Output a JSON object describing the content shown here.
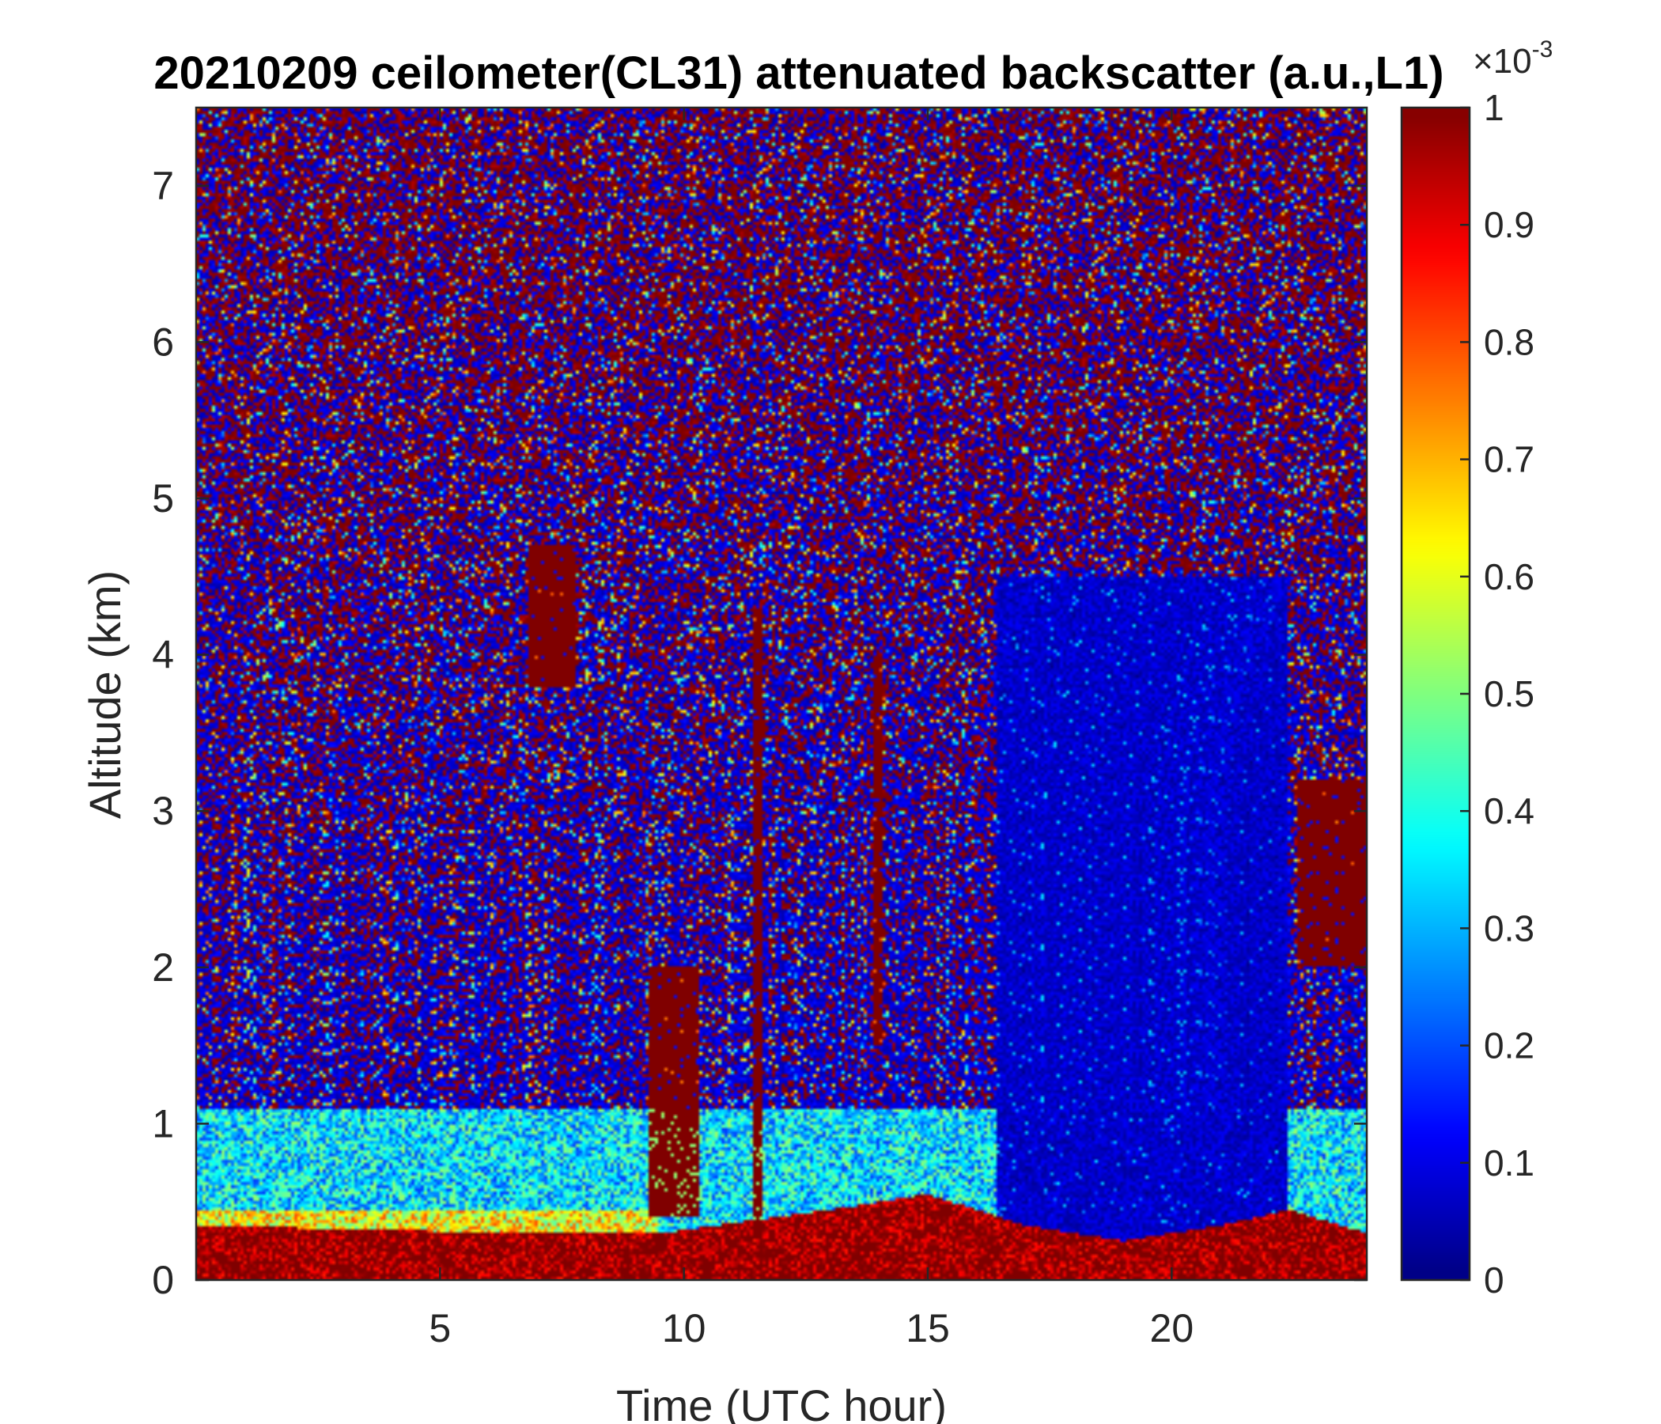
{
  "chart_data": {
    "type": "heatmap",
    "title": "20210209 ceilometer(CL31) attenuated backscatter (a.u.,L1)",
    "xlabel": "Time (UTC hour)",
    "ylabel": "Altitude (km)",
    "xlim": [
      0,
      24
    ],
    "ylim": [
      0,
      7.5
    ],
    "xticks": [
      5,
      10,
      15,
      20
    ],
    "yticks": [
      0,
      1,
      2,
      3,
      4,
      5,
      6,
      7
    ],
    "colorbar": {
      "colormap": "jet",
      "clim": [
        0,
        1
      ],
      "ticks": [
        0,
        0.1,
        0.2,
        0.3,
        0.4,
        0.5,
        0.6,
        0.7,
        0.8,
        0.9,
        1
      ],
      "tick_labels": [
        "0",
        "0.1",
        "0.2",
        "0.3",
        "0.4",
        "0.5",
        "0.6",
        "0.7",
        "0.8",
        "0.9",
        "1"
      ],
      "exponent_label": "×10",
      "exponent_power": "-3"
    },
    "features": {
      "cloud_columns": [
        {
          "x": [
            6.8,
            7.8
          ],
          "y": [
            3.8,
            4.7
          ]
        },
        {
          "x": [
            9.3,
            10.3
          ],
          "y": [
            0.4,
            2.0
          ]
        },
        {
          "x": [
            11.4,
            11.6
          ],
          "y": [
            0.3,
            4.3
          ]
        },
        {
          "x": [
            13.9,
            14.1
          ],
          "y": [
            1.5,
            4.0
          ]
        },
        {
          "x": [
            22.6,
            24.0
          ],
          "y": [
            2.0,
            3.2
          ]
        }
      ],
      "clear_column_x": [
        16.4,
        22.4
      ],
      "surface_layer_top_km": [
        [
          0,
          0.35
        ],
        [
          6.6,
          0.3
        ],
        [
          9.5,
          0.3
        ],
        [
          13,
          0.45
        ],
        [
          15,
          0.55
        ],
        [
          17,
          0.35
        ],
        [
          19,
          0.25
        ],
        [
          21,
          0.35
        ],
        [
          22.4,
          0.45
        ],
        [
          24,
          0.3
        ]
      ]
    }
  }
}
